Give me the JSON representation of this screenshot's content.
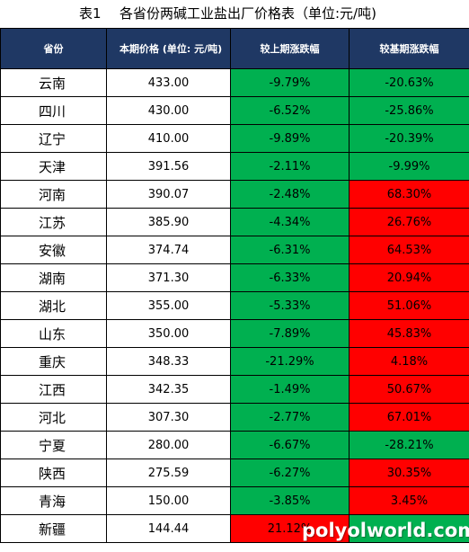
{
  "title": {
    "number": "表1",
    "text": "各省份两碱工业盐出厂价格表（单位:元/吨)"
  },
  "columns": [
    "省份",
    "本期价格 (单位: 元/吨)",
    "较上期涨跌幅",
    "较基期涨跌幅"
  ],
  "rows": [
    {
      "province": "云南",
      "price": "433.00",
      "vs_prev": "-9.79%",
      "vs_base": "-20.63%",
      "prev_color": "green",
      "base_color": "green"
    },
    {
      "province": "四川",
      "price": "430.00",
      "vs_prev": "-6.52%",
      "vs_base": "-25.86%",
      "prev_color": "green",
      "base_color": "green"
    },
    {
      "province": "辽宁",
      "price": "410.00",
      "vs_prev": "-9.89%",
      "vs_base": "-20.39%",
      "prev_color": "green",
      "base_color": "green"
    },
    {
      "province": "天津",
      "price": "391.56",
      "vs_prev": "-2.11%",
      "vs_base": "-9.99%",
      "prev_color": "green",
      "base_color": "green"
    },
    {
      "province": "河南",
      "price": "390.07",
      "vs_prev": "-2.48%",
      "vs_base": "68.30%",
      "prev_color": "green",
      "base_color": "red"
    },
    {
      "province": "江苏",
      "price": "385.90",
      "vs_prev": "-4.34%",
      "vs_base": "26.76%",
      "prev_color": "green",
      "base_color": "red"
    },
    {
      "province": "安徽",
      "price": "374.74",
      "vs_prev": "-6.31%",
      "vs_base": "64.53%",
      "prev_color": "green",
      "base_color": "red"
    },
    {
      "province": "湖南",
      "price": "371.30",
      "vs_prev": "-6.33%",
      "vs_base": "20.94%",
      "prev_color": "green",
      "base_color": "red"
    },
    {
      "province": "湖北",
      "price": "355.00",
      "vs_prev": "-5.33%",
      "vs_base": "51.06%",
      "prev_color": "green",
      "base_color": "red"
    },
    {
      "province": "山东",
      "price": "350.00",
      "vs_prev": "-7.89%",
      "vs_base": "45.83%",
      "prev_color": "green",
      "base_color": "red"
    },
    {
      "province": "重庆",
      "price": "348.33",
      "vs_prev": "-21.29%",
      "vs_base": "4.18%",
      "prev_color": "green",
      "base_color": "red"
    },
    {
      "province": "江西",
      "price": "342.35",
      "vs_prev": "-1.49%",
      "vs_base": "50.67%",
      "prev_color": "green",
      "base_color": "red"
    },
    {
      "province": "河北",
      "price": "307.30",
      "vs_prev": "-2.77%",
      "vs_base": "67.01%",
      "prev_color": "green",
      "base_color": "red"
    },
    {
      "province": "宁夏",
      "price": "280.00",
      "vs_prev": "-6.67%",
      "vs_base": "-28.21%",
      "prev_color": "green",
      "base_color": "green"
    },
    {
      "province": "陕西",
      "price": "275.59",
      "vs_prev": "-6.27%",
      "vs_base": "30.35%",
      "prev_color": "green",
      "base_color": "red"
    },
    {
      "province": "青海",
      "price": "150.00",
      "vs_prev": "-3.85%",
      "vs_base": "3.45%",
      "prev_color": "green",
      "base_color": "red"
    },
    {
      "province": "新疆",
      "price": "144.44",
      "vs_prev": "21.12%",
      "vs_base": "",
      "prev_color": "red",
      "base_color": "green"
    }
  ],
  "watermark": "polyolworld.com",
  "colors": {
    "header_bg": "#1f3864",
    "green": "#00b050",
    "red": "#ff0000"
  }
}
